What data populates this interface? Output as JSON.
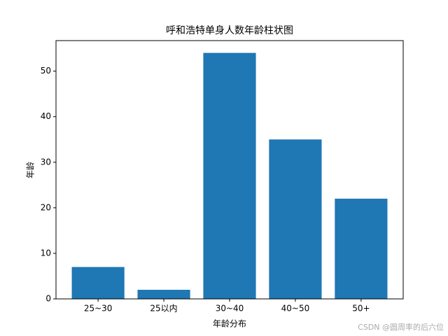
{
  "chart_data": {
    "type": "bar",
    "title": "呼和浩特单身人数年龄柱状图",
    "x_label": "年龄分布",
    "y_label": "年龄",
    "categories": [
      "25~30",
      "25以内",
      "30~40",
      "40~50",
      "50+"
    ],
    "values": [
      7,
      2,
      54,
      35,
      22
    ],
    "color": "#1f77b4",
    "ylim": [
      0,
      56.7
    ],
    "yticks": [
      0,
      10,
      20,
      30,
      40,
      50
    ],
    "grid": false
  },
  "watermark": "CSDN @圆周率的后六位"
}
